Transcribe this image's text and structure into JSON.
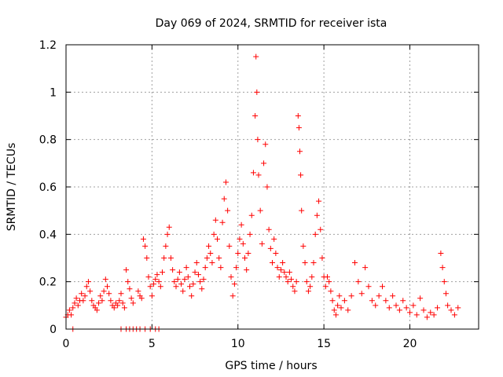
{
  "chart_data": {
    "type": "scatter",
    "title": "Day 069 of 2024, SRMTID for receiver ista",
    "xlabel": "GPS time / hours",
    "ylabel": "SRMTID / TECUs",
    "xlim": [
      0,
      24
    ],
    "ylim": [
      0,
      1.2
    ],
    "xticks": [
      0,
      5,
      10,
      15,
      20
    ],
    "yticks": [
      0,
      0.2,
      0.4,
      0.6,
      0.8,
      1,
      1.2
    ],
    "xtick_labels": [
      "0",
      "5",
      "10",
      "15",
      "20"
    ],
    "ytick_labels": [
      "0",
      "0.2",
      "0.4",
      "0.6",
      "0.8",
      "1",
      "1.2"
    ],
    "grid": true,
    "marker": "plus",
    "color": "#ff0000",
    "series": [
      {
        "name": "SRMTID",
        "points": [
          [
            0.0,
            0.05
          ],
          [
            0.1,
            0.06
          ],
          [
            0.2,
            0.08
          ],
          [
            0.3,
            0.06
          ],
          [
            0.4,
            0.09
          ],
          [
            0.5,
            0.11
          ],
          [
            0.6,
            0.13
          ],
          [
            0.7,
            0.1
          ],
          [
            0.8,
            0.12
          ],
          [
            0.9,
            0.15
          ],
          [
            1.0,
            0.12
          ],
          [
            1.1,
            0.14
          ],
          [
            1.2,
            0.18
          ],
          [
            1.3,
            0.2
          ],
          [
            1.4,
            0.16
          ],
          [
            1.5,
            0.12
          ],
          [
            1.6,
            0.1
          ],
          [
            1.7,
            0.09
          ],
          [
            1.8,
            0.08
          ],
          [
            1.9,
            0.11
          ],
          [
            2.0,
            0.14
          ],
          [
            2.1,
            0.12
          ],
          [
            2.2,
            0.16
          ],
          [
            2.3,
            0.21
          ],
          [
            2.4,
            0.18
          ],
          [
            2.5,
            0.15
          ],
          [
            2.6,
            0.12
          ],
          [
            2.7,
            0.1
          ],
          [
            2.8,
            0.09
          ],
          [
            2.9,
            0.11
          ],
          [
            3.0,
            0.1
          ],
          [
            3.1,
            0.12
          ],
          [
            3.2,
            0.15
          ],
          [
            3.3,
            0.11
          ],
          [
            3.4,
            0.09
          ],
          [
            3.5,
            0.25
          ],
          [
            3.6,
            0.2
          ],
          [
            3.7,
            0.17
          ],
          [
            3.8,
            0.13
          ],
          [
            3.9,
            0.11
          ],
          [
            4.2,
            0.16
          ],
          [
            4.3,
            0.14
          ],
          [
            4.4,
            0.13
          ],
          [
            4.5,
            0.38
          ],
          [
            4.6,
            0.35
          ],
          [
            4.7,
            0.3
          ],
          [
            4.8,
            0.22
          ],
          [
            4.9,
            0.18
          ],
          [
            5.0,
            0.14
          ],
          [
            5.1,
            0.19
          ],
          [
            5.2,
            0.21
          ],
          [
            5.3,
            0.23
          ],
          [
            5.4,
            0.2
          ],
          [
            5.5,
            0.18
          ],
          [
            5.6,
            0.24
          ],
          [
            5.7,
            0.3
          ],
          [
            5.8,
            0.35
          ],
          [
            5.9,
            0.4
          ],
          [
            6.0,
            0.43
          ],
          [
            6.1,
            0.3
          ],
          [
            6.2,
            0.25
          ],
          [
            6.3,
            0.2
          ],
          [
            6.4,
            0.18
          ],
          [
            6.5,
            0.21
          ],
          [
            6.6,
            0.24
          ],
          [
            6.7,
            0.19
          ],
          [
            6.8,
            0.16
          ],
          [
            6.9,
            0.21
          ],
          [
            7.0,
            0.26
          ],
          [
            7.1,
            0.22
          ],
          [
            7.2,
            0.18
          ],
          [
            7.3,
            0.14
          ],
          [
            7.4,
            0.19
          ],
          [
            7.5,
            0.24
          ],
          [
            7.6,
            0.28
          ],
          [
            7.7,
            0.23
          ],
          [
            7.8,
            0.2
          ],
          [
            7.9,
            0.17
          ],
          [
            8.0,
            0.21
          ],
          [
            8.1,
            0.26
          ],
          [
            8.2,
            0.3
          ],
          [
            8.3,
            0.35
          ],
          [
            8.4,
            0.32
          ],
          [
            8.5,
            0.28
          ],
          [
            8.6,
            0.4
          ],
          [
            8.7,
            0.46
          ],
          [
            8.8,
            0.38
          ],
          [
            8.9,
            0.3
          ],
          [
            9.0,
            0.26
          ],
          [
            9.1,
            0.45
          ],
          [
            9.2,
            0.55
          ],
          [
            9.3,
            0.62
          ],
          [
            9.4,
            0.5
          ],
          [
            9.5,
            0.35
          ],
          [
            9.6,
            0.22
          ],
          [
            9.7,
            0.14
          ],
          [
            9.8,
            0.19
          ],
          [
            9.9,
            0.26
          ],
          [
            10.0,
            0.32
          ],
          [
            10.1,
            0.38
          ],
          [
            10.2,
            0.44
          ],
          [
            10.3,
            0.36
          ],
          [
            10.4,
            0.3
          ],
          [
            10.5,
            0.25
          ],
          [
            10.6,
            0.32
          ],
          [
            10.7,
            0.4
          ],
          [
            10.8,
            0.48
          ],
          [
            10.9,
            0.66
          ],
          [
            11.0,
            0.9
          ],
          [
            11.05,
            1.15
          ],
          [
            11.1,
            1.0
          ],
          [
            11.15,
            0.8
          ],
          [
            11.2,
            0.65
          ],
          [
            11.3,
            0.5
          ],
          [
            11.4,
            0.36
          ],
          [
            11.5,
            0.7
          ],
          [
            11.6,
            0.78
          ],
          [
            11.7,
            0.6
          ],
          [
            11.8,
            0.42
          ],
          [
            11.9,
            0.34
          ],
          [
            12.0,
            0.28
          ],
          [
            12.1,
            0.38
          ],
          [
            12.2,
            0.32
          ],
          [
            12.3,
            0.26
          ],
          [
            12.4,
            0.22
          ],
          [
            12.5,
            0.25
          ],
          [
            12.6,
            0.28
          ],
          [
            12.7,
            0.24
          ],
          [
            12.8,
            0.22
          ],
          [
            12.9,
            0.2
          ],
          [
            13.0,
            0.24
          ],
          [
            13.1,
            0.21
          ],
          [
            13.2,
            0.18
          ],
          [
            13.3,
            0.16
          ],
          [
            13.4,
            0.2
          ],
          [
            13.5,
            0.9
          ],
          [
            13.55,
            0.85
          ],
          [
            13.6,
            0.75
          ],
          [
            13.65,
            0.65
          ],
          [
            13.7,
            0.5
          ],
          [
            13.8,
            0.35
          ],
          [
            13.9,
            0.28
          ],
          [
            14.0,
            0.2
          ],
          [
            14.1,
            0.16
          ],
          [
            14.2,
            0.18
          ],
          [
            14.3,
            0.22
          ],
          [
            14.4,
            0.28
          ],
          [
            14.5,
            0.4
          ],
          [
            14.6,
            0.48
          ],
          [
            14.7,
            0.54
          ],
          [
            14.8,
            0.42
          ],
          [
            14.9,
            0.3
          ],
          [
            15.0,
            0.22
          ],
          [
            15.1,
            0.18
          ],
          [
            15.2,
            0.22
          ],
          [
            15.3,
            0.2
          ],
          [
            15.4,
            0.16
          ],
          [
            15.5,
            0.12
          ],
          [
            15.6,
            0.08
          ],
          [
            15.7,
            0.06
          ],
          [
            15.8,
            0.1
          ],
          [
            15.9,
            0.14
          ],
          [
            16.0,
            0.09
          ],
          [
            16.2,
            0.12
          ],
          [
            16.4,
            0.08
          ],
          [
            16.6,
            0.14
          ],
          [
            16.8,
            0.28
          ],
          [
            17.0,
            0.2
          ],
          [
            17.2,
            0.15
          ],
          [
            17.4,
            0.26
          ],
          [
            17.6,
            0.18
          ],
          [
            17.8,
            0.12
          ],
          [
            18.0,
            0.1
          ],
          [
            18.2,
            0.14
          ],
          [
            18.4,
            0.18
          ],
          [
            18.6,
            0.12
          ],
          [
            18.8,
            0.09
          ],
          [
            19.0,
            0.14
          ],
          [
            19.2,
            0.1
          ],
          [
            19.4,
            0.08
          ],
          [
            19.6,
            0.12
          ],
          [
            19.8,
            0.09
          ],
          [
            20.0,
            0.07
          ],
          [
            20.2,
            0.1
          ],
          [
            20.4,
            0.06
          ],
          [
            20.6,
            0.13
          ],
          [
            20.8,
            0.08
          ],
          [
            21.0,
            0.05
          ],
          [
            21.2,
            0.07
          ],
          [
            21.4,
            0.06
          ],
          [
            21.6,
            0.09
          ],
          [
            21.8,
            0.32
          ],
          [
            21.9,
            0.26
          ],
          [
            22.0,
            0.2
          ],
          [
            22.1,
            0.15
          ],
          [
            22.2,
            0.1
          ],
          [
            22.4,
            0.08
          ],
          [
            22.6,
            0.06
          ],
          [
            22.8,
            0.09
          ],
          [
            0.4,
            0.0
          ],
          [
            3.2,
            0.0
          ],
          [
            3.5,
            0.0
          ],
          [
            3.7,
            0.0
          ],
          [
            3.9,
            0.0
          ],
          [
            4.1,
            0.0
          ],
          [
            4.3,
            0.0
          ],
          [
            4.6,
            0.0
          ],
          [
            4.9,
            0.0
          ],
          [
            5.2,
            0.0
          ],
          [
            5.4,
            0.0
          ]
        ]
      }
    ]
  }
}
